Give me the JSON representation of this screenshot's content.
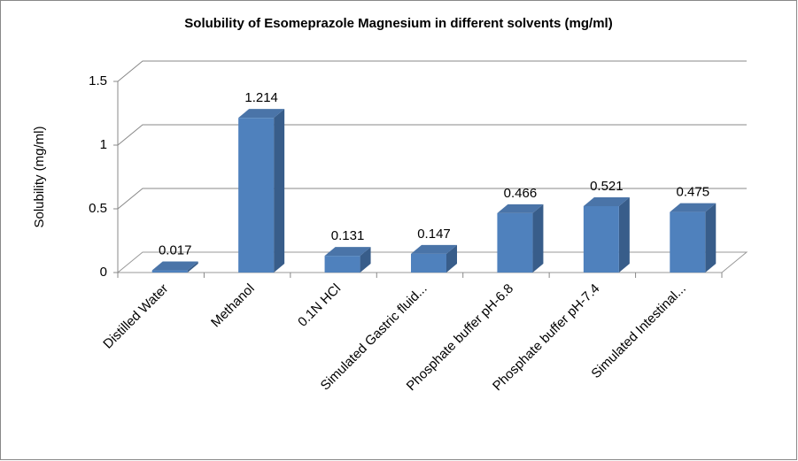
{
  "chart_data": {
    "type": "bar3d",
    "title": "Solubility of Esomeprazole Magnesium in different solvents (mg/ml)",
    "y_label": "Solubility (mg/ml)",
    "categories": [
      "Distilled Water",
      "Methanol",
      "0.1N HCl",
      "Simulated Gastric fluid...",
      "Phosphate buffer pH-6.8",
      "Phosphate buffer pH-7.4",
      "Simulated Intestinal..."
    ],
    "values": [
      0.017,
      1.214,
      0.131,
      0.147,
      0.466,
      0.521,
      0.475
    ],
    "color": "#4f81bd",
    "ylim": [
      0,
      1.5
    ],
    "yticks": [
      0,
      0.5,
      1,
      1.5
    ],
    "grid": true
  }
}
